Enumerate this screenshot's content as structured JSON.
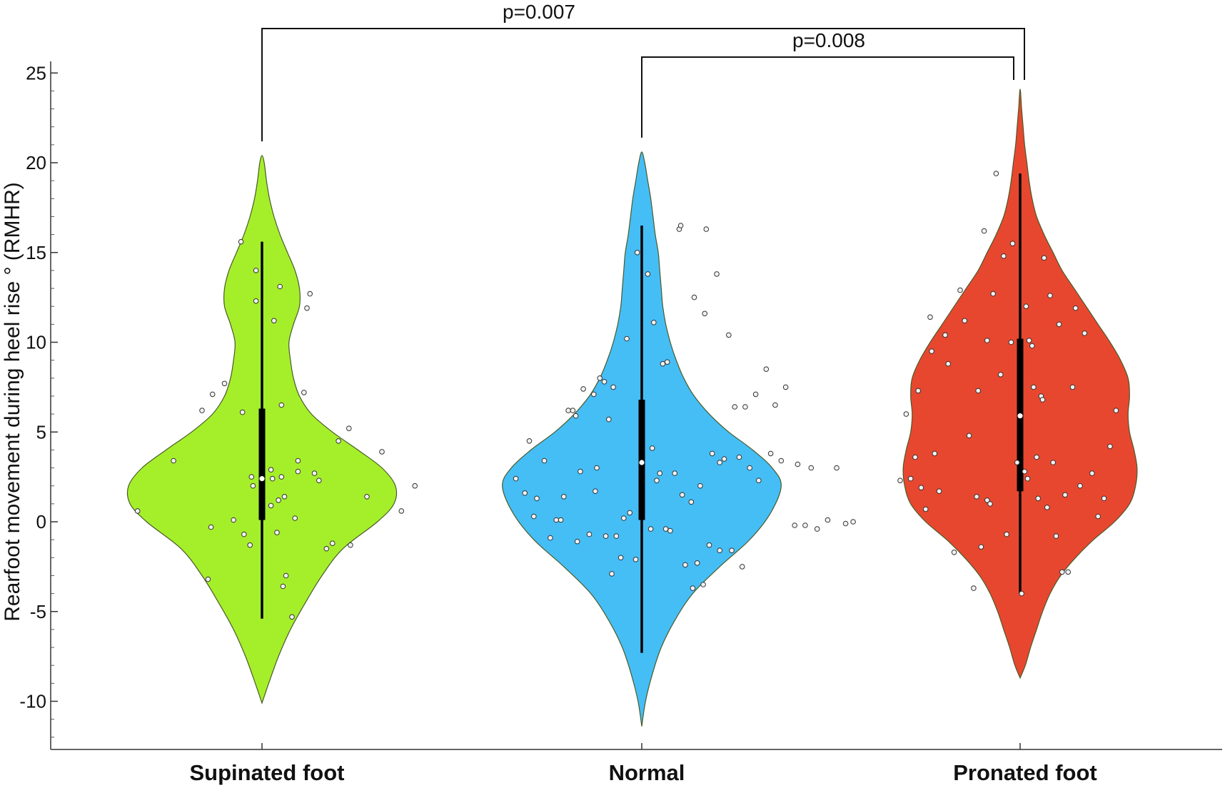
{
  "chart_data": {
    "type": "violin",
    "ylabel": "Rearfoot movement during heel rise ° (RMHR)",
    "xlabel": "",
    "ylim": [
      -12.2,
      25.5
    ],
    "yticks": [
      -10,
      -5,
      0,
      5,
      10,
      15,
      20,
      25
    ],
    "ytick_labels": [
      "-10",
      "-5",
      "0",
      "5",
      "10",
      "15",
      "20",
      "25"
    ],
    "grid": false,
    "categories": [
      "Supinated foot",
      "Normal",
      "Pronated foot"
    ],
    "series": [
      {
        "category": "Supinated foot",
        "color": "#a5ef2a",
        "range": [
          -10.1,
          20.4
        ],
        "density": [
          [
            -10.1,
            0
          ],
          [
            -9,
            0.045
          ],
          [
            -7.5,
            0.11
          ],
          [
            -6,
            0.19
          ],
          [
            -4.5,
            0.29
          ],
          [
            -3,
            0.4
          ],
          [
            -1.5,
            0.54
          ],
          [
            0,
            0.77
          ],
          [
            1,
            0.88
          ],
          [
            2,
            0.89
          ],
          [
            3,
            0.8
          ],
          [
            4,
            0.64
          ],
          [
            5,
            0.47
          ],
          [
            6,
            0.33
          ],
          [
            7,
            0.25
          ],
          [
            8,
            0.21
          ],
          [
            9,
            0.19
          ],
          [
            10,
            0.18
          ],
          [
            11,
            0.21
          ],
          [
            12,
            0.25
          ],
          [
            13,
            0.25
          ],
          [
            14,
            0.22
          ],
          [
            15,
            0.17
          ],
          [
            16,
            0.12
          ],
          [
            17,
            0.08
          ],
          [
            18,
            0.05
          ],
          [
            19,
            0.03
          ],
          [
            20,
            0.015
          ],
          [
            20.4,
            0
          ]
        ],
        "whisker": [
          -5.4,
          15.6
        ],
        "iqr": [
          0.1,
          6.3
        ],
        "median": 2.4,
        "points": [
          [
            -0.83,
            0.6
          ],
          [
            -0.59,
            3.4
          ],
          [
            -0.4,
            6.2
          ],
          [
            -0.34,
            -0.3
          ],
          [
            -0.36,
            -3.2
          ],
          [
            -0.33,
            7.1
          ],
          [
            -0.25,
            7.7
          ],
          [
            -0.19,
            0.1
          ],
          [
            -0.13,
            6.1
          ],
          [
            -0.14,
            15.6
          ],
          [
            -0.12,
            -0.7
          ],
          [
            -0.08,
            -1.3
          ],
          [
            -0.07,
            2.5
          ],
          [
            -0.06,
            2.0
          ],
          [
            -0.04,
            14.0
          ],
          [
            -0.04,
            12.3
          ],
          [
            0.06,
            0.9
          ],
          [
            0.06,
            2.9
          ],
          [
            0.07,
            2.4
          ],
          [
            0.08,
            11.2
          ],
          [
            0.1,
            -0.6
          ],
          [
            0.11,
            1.2
          ],
          [
            0.13,
            6.5
          ],
          [
            0.13,
            2.5
          ],
          [
            0.12,
            13.1
          ],
          [
            0.15,
            1.4
          ],
          [
            0.14,
            -3.6
          ],
          [
            0.16,
            -3.0
          ],
          [
            0.2,
            -5.3
          ],
          [
            0.24,
            2.8
          ],
          [
            0.22,
            0.2
          ],
          [
            0.24,
            3.4
          ],
          [
            0.28,
            7.2
          ],
          [
            0.3,
            11.9
          ],
          [
            0.32,
            12.7
          ],
          [
            0.35,
            2.7
          ],
          [
            0.38,
            2.3
          ],
          [
            0.43,
            -1.5
          ],
          [
            0.47,
            -1.2
          ],
          [
            0.51,
            4.5
          ],
          [
            0.58,
            5.2
          ],
          [
            0.59,
            -1.3
          ],
          [
            0.7,
            1.4
          ],
          [
            0.8,
            3.9
          ],
          [
            0.93,
            0.6
          ],
          [
            1.02,
            2.0
          ]
        ]
      },
      {
        "category": "Normal",
        "color": "#45bef6",
        "range": [
          -11.4,
          20.6
        ],
        "density": [
          [
            -11.4,
            0
          ],
          [
            -10,
            0.025
          ],
          [
            -8.5,
            0.07
          ],
          [
            -7,
            0.13
          ],
          [
            -5.5,
            0.22
          ],
          [
            -4,
            0.34
          ],
          [
            -2.5,
            0.52
          ],
          [
            -1,
            0.72
          ],
          [
            0.5,
            0.86
          ],
          [
            2,
            0.93
          ],
          [
            3,
            0.87
          ],
          [
            4,
            0.74
          ],
          [
            5,
            0.58
          ],
          [
            6,
            0.45
          ],
          [
            7,
            0.35
          ],
          [
            8,
            0.28
          ],
          [
            9,
            0.23
          ],
          [
            10,
            0.19
          ],
          [
            11,
            0.16
          ],
          [
            12,
            0.14
          ],
          [
            13,
            0.13
          ],
          [
            14,
            0.12
          ],
          [
            15,
            0.11
          ],
          [
            16,
            0.09
          ],
          [
            17,
            0.075
          ],
          [
            18,
            0.06
          ],
          [
            19,
            0.04
          ],
          [
            20,
            0.02
          ],
          [
            20.6,
            0
          ]
        ],
        "whisker": [
          -7.3,
          16.5
        ],
        "iqr": [
          0.1,
          6.8
        ],
        "median": 3.3,
        "points": [
          [
            -0.84,
            2.4
          ],
          [
            -0.78,
            1.6
          ],
          [
            -0.75,
            4.5
          ],
          [
            -0.72,
            0.3
          ],
          [
            -0.7,
            1.3
          ],
          [
            -0.65,
            3.4
          ],
          [
            -0.61,
            -0.9
          ],
          [
            -0.57,
            0.1
          ],
          [
            -0.54,
            0.1
          ],
          [
            -0.52,
            1.4
          ],
          [
            -0.49,
            6.2
          ],
          [
            -0.46,
            6.2
          ],
          [
            -0.44,
            5.9
          ],
          [
            -0.43,
            -1.1
          ],
          [
            -0.41,
            2.8
          ],
          [
            -0.39,
            7.4
          ],
          [
            -0.35,
            -0.7
          ],
          [
            -0.32,
            7.1
          ],
          [
            -0.31,
            1.7
          ],
          [
            -0.3,
            3.0
          ],
          [
            -0.28,
            8.0
          ],
          [
            -0.25,
            7.8
          ],
          [
            -0.24,
            -0.8
          ],
          [
            -0.22,
            5.7
          ],
          [
            -0.2,
            -2.9
          ],
          [
            -0.19,
            7.5
          ],
          [
            -0.17,
            -0.8
          ],
          [
            -0.14,
            -2.0
          ],
          [
            -0.12,
            0.2
          ],
          [
            -0.1,
            10.2
          ],
          [
            -0.08,
            0.5
          ],
          [
            -0.04,
            -2.1
          ],
          [
            -0.03,
            15.0
          ],
          [
            0.04,
            13.8
          ],
          [
            0.06,
            -0.4
          ],
          [
            0.07,
            4.1
          ],
          [
            0.08,
            11.1
          ],
          [
            0.1,
            2.3
          ],
          [
            0.12,
            2.7
          ],
          [
            0.14,
            8.8
          ],
          [
            0.16,
            -0.4
          ],
          [
            0.17,
            8.9
          ],
          [
            0.19,
            -0.5
          ],
          [
            0.22,
            2.7
          ],
          [
            0.25,
            16.3
          ],
          [
            0.26,
            16.5
          ],
          [
            0.27,
            1.5
          ],
          [
            0.29,
            -2.4
          ],
          [
            0.33,
            1.1
          ],
          [
            0.34,
            -3.7
          ],
          [
            0.35,
            12.5
          ],
          [
            0.37,
            -2.3
          ],
          [
            0.39,
            2.0
          ],
          [
            0.41,
            -3.5
          ],
          [
            0.42,
            11.6
          ],
          [
            0.43,
            16.3
          ],
          [
            0.45,
            -1.3
          ],
          [
            0.47,
            3.8
          ],
          [
            0.5,
            13.8
          ],
          [
            0.52,
            3.3
          ],
          [
            0.52,
            -1.6
          ],
          [
            0.55,
            3.5
          ],
          [
            0.58,
            10.4
          ],
          [
            0.6,
            -1.6
          ],
          [
            0.62,
            6.4
          ],
          [
            0.65,
            3.6
          ],
          [
            0.67,
            -2.5
          ],
          [
            0.69,
            6.4
          ],
          [
            0.72,
            3.0
          ],
          [
            0.76,
            7.1
          ],
          [
            0.78,
            2.3
          ],
          [
            0.83,
            8.5
          ],
          [
            0.86,
            3.8
          ],
          [
            0.89,
            6.5
          ],
          [
            0.93,
            3.4
          ],
          [
            0.96,
            7.5
          ],
          [
            1.02,
            -0.2
          ],
          [
            1.04,
            3.2
          ],
          [
            1.09,
            -0.2
          ],
          [
            1.13,
            3.0
          ],
          [
            1.17,
            -0.4
          ],
          [
            1.24,
            0.1
          ],
          [
            1.3,
            3.0
          ],
          [
            1.36,
            -0.1
          ],
          [
            1.41,
            0.0
          ]
        ]
      },
      {
        "category": "Pronated foot",
        "color": "#e8472f",
        "range": [
          -8.7,
          24.1
        ],
        "density": [
          [
            -8.7,
            0
          ],
          [
            -8,
            0.035
          ],
          [
            -7,
            0.07
          ],
          [
            -6,
            0.11
          ],
          [
            -5,
            0.15
          ],
          [
            -4,
            0.2
          ],
          [
            -3,
            0.27
          ],
          [
            -2,
            0.37
          ],
          [
            -1,
            0.49
          ],
          [
            0,
            0.63
          ],
          [
            1,
            0.73
          ],
          [
            2,
            0.77
          ],
          [
            3,
            0.78
          ],
          [
            4,
            0.76
          ],
          [
            5,
            0.73
          ],
          [
            6,
            0.72
          ],
          [
            7,
            0.73
          ],
          [
            8,
            0.72
          ],
          [
            9,
            0.67
          ],
          [
            10,
            0.6
          ],
          [
            11,
            0.52
          ],
          [
            12,
            0.44
          ],
          [
            13,
            0.36
          ],
          [
            14,
            0.28
          ],
          [
            15,
            0.22
          ],
          [
            16,
            0.16
          ],
          [
            17,
            0.11
          ],
          [
            18,
            0.08
          ],
          [
            19,
            0.06
          ],
          [
            20,
            0.045
          ],
          [
            21,
            0.03
          ],
          [
            22,
            0.02
          ],
          [
            23,
            0.01
          ],
          [
            24.1,
            0
          ]
        ],
        "whisker": [
          -4.0,
          19.4
        ],
        "iqr": [
          1.7,
          10.2
        ],
        "median": 5.9,
        "points": [
          [
            -0.8,
            2.3
          ],
          [
            -0.76,
            6.0
          ],
          [
            -0.73,
            2.4
          ],
          [
            -0.7,
            3.6
          ],
          [
            -0.68,
            7.3
          ],
          [
            -0.66,
            1.9
          ],
          [
            -0.63,
            0.7
          ],
          [
            -0.6,
            11.4
          ],
          [
            -0.59,
            9.5
          ],
          [
            -0.57,
            3.8
          ],
          [
            -0.54,
            1.7
          ],
          [
            -0.5,
            10.4
          ],
          [
            -0.48,
            8.8
          ],
          [
            -0.44,
            -1.7
          ],
          [
            -0.4,
            12.9
          ],
          [
            -0.37,
            11.2
          ],
          [
            -0.34,
            4.8
          ],
          [
            -0.31,
            -3.7
          ],
          [
            -0.29,
            1.4
          ],
          [
            -0.28,
            7.3
          ],
          [
            -0.26,
            -1.4
          ],
          [
            -0.24,
            16.2
          ],
          [
            -0.22,
            10.1
          ],
          [
            -0.2,
            1.0
          ],
          [
            -0.18,
            12.7
          ],
          [
            -0.16,
            19.4
          ],
          [
            -0.13,
            8.2
          ],
          [
            -0.11,
            14.8
          ],
          [
            -0.09,
            -0.7
          ],
          [
            -0.06,
            10.0
          ],
          [
            -0.05,
            15.5
          ],
          [
            -0.02,
            3.3
          ],
          [
            0.01,
            -4.0
          ],
          [
            0.03,
            2.8
          ],
          [
            0.04,
            12.0
          ],
          [
            0.06,
            10.1
          ],
          [
            0.08,
            9.8
          ],
          [
            0.09,
            7.5
          ],
          [
            0.11,
            3.6
          ],
          [
            0.12,
            1.3
          ],
          [
            0.14,
            7.0
          ],
          [
            0.15,
            6.8
          ],
          [
            0.16,
            14.7
          ],
          [
            0.18,
            0.8
          ],
          [
            0.2,
            12.6
          ],
          [
            0.22,
            3.3
          ],
          [
            0.24,
            -0.8
          ],
          [
            0.26,
            11.0
          ],
          [
            0.28,
            -2.8
          ],
          [
            0.3,
            1.5
          ],
          [
            0.32,
            -2.8
          ],
          [
            0.35,
            7.5
          ],
          [
            0.37,
            11.9
          ],
          [
            0.4,
            2.0
          ],
          [
            0.43,
            10.5
          ],
          [
            0.48,
            2.7
          ],
          [
            0.52,
            0.3
          ],
          [
            0.56,
            1.3
          ],
          [
            0.6,
            4.2
          ],
          [
            0.64,
            6.2
          ],
          [
            -0.22,
            1.2
          ],
          [
            0.05,
            2.4
          ]
        ]
      }
    ],
    "annotations": [
      {
        "text": "p=0.007",
        "from": "Supinated foot",
        "to": "Pronated foot",
        "level": 1
      },
      {
        "text": "p=0.008",
        "from": "Normal",
        "to": "Pronated foot",
        "level": 2
      }
    ]
  }
}
